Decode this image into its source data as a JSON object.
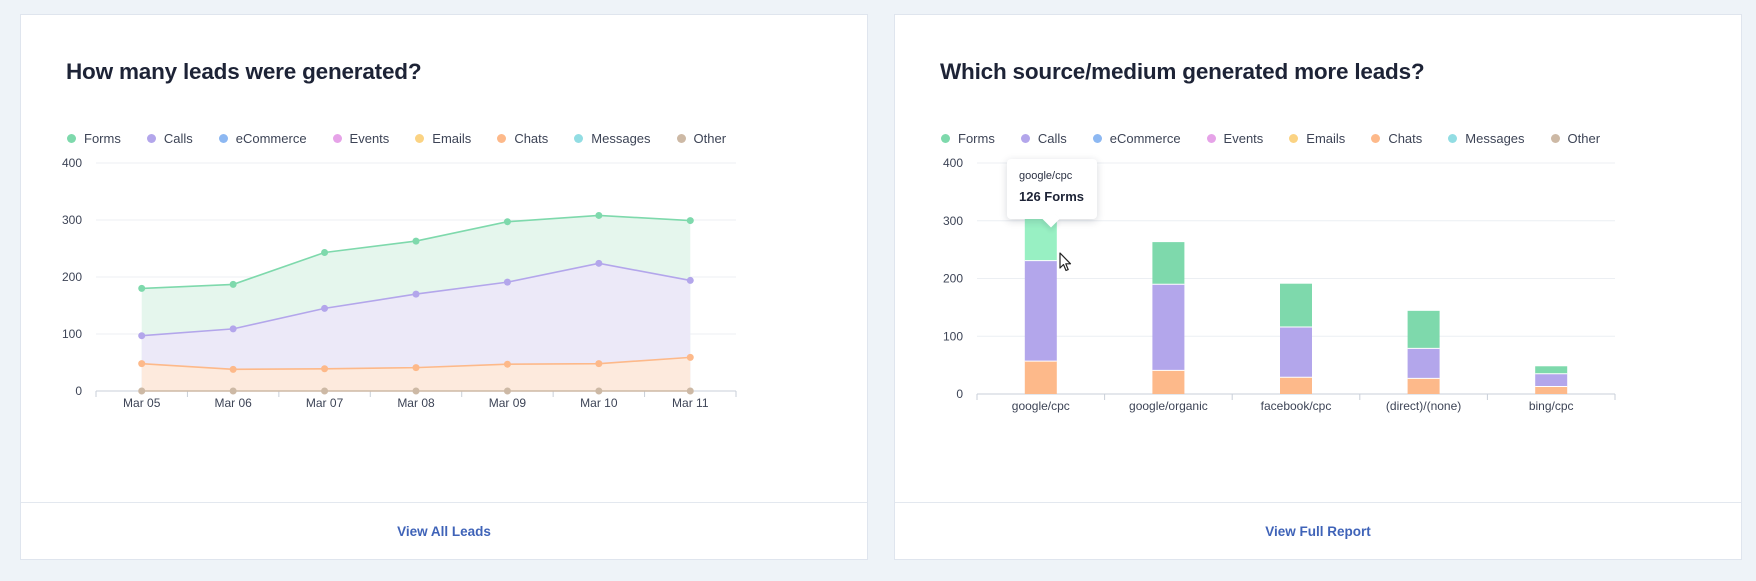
{
  "legend": [
    {
      "label": "Forms",
      "color": "#7ed9ac"
    },
    {
      "label": "Calls",
      "color": "#b3a6eb"
    },
    {
      "label": "eCommerce",
      "color": "#8db8f2"
    },
    {
      "label": "Events",
      "color": "#e6a3e8"
    },
    {
      "label": "Emails",
      "color": "#fbd383"
    },
    {
      "label": "Chats",
      "color": "#fdb98a"
    },
    {
      "label": "Messages",
      "color": "#92dde3"
    },
    {
      "label": "Other",
      "color": "#cdb9a5"
    }
  ],
  "left_card": {
    "title": "How many leads were generated?",
    "footer_link": "View All Leads"
  },
  "right_card": {
    "title": "Which source/medium generated more leads?",
    "footer_link": "View Full Report",
    "tooltip": {
      "source": "google/cpc",
      "value": "126 Forms"
    }
  },
  "chart_data": [
    {
      "type": "area",
      "title": "How many leads were generated?",
      "categories": [
        "Mar 05",
        "Mar 06",
        "Mar 07",
        "Mar 08",
        "Mar 09",
        "Mar 10",
        "Mar 11"
      ],
      "ylim": [
        0,
        400
      ],
      "yticks": [
        0,
        100,
        200,
        300,
        400
      ],
      "series": [
        {
          "name": "Forms",
          "color": "#7ed9ac",
          "fill": "#e5f6ed",
          "values": [
            180,
            187,
            243,
            263,
            297,
            308,
            299
          ]
        },
        {
          "name": "Calls",
          "color": "#b3a6eb",
          "fill": "#ece9f8",
          "values": [
            97,
            109,
            145,
            170,
            191,
            224,
            194
          ]
        },
        {
          "name": "Chats",
          "color": "#fdb98a",
          "fill": "#fdeadd",
          "values": [
            48,
            38,
            39,
            41,
            47,
            48,
            59
          ]
        },
        {
          "name": "Other",
          "color": "#cdb9a5",
          "fill": "none",
          "values": [
            0,
            0,
            0,
            0,
            0,
            0,
            0
          ]
        }
      ],
      "grid": true,
      "legend": "top-left"
    },
    {
      "type": "bar",
      "stacked": true,
      "title": "Which source/medium generated more leads?",
      "categories": [
        "google/cpc",
        "google/organic",
        "facebook/cpc",
        "(direct)/(none)",
        "bing/cpc"
      ],
      "ylim": [
        0,
        400
      ],
      "yticks": [
        0,
        100,
        200,
        300,
        400
      ],
      "series": [
        {
          "name": "Chats",
          "color": "#fdb98a",
          "values": [
            57,
            41,
            29,
            27,
            13
          ]
        },
        {
          "name": "Calls",
          "color": "#b3a6eb",
          "values": [
            174,
            149,
            87,
            52,
            22
          ]
        },
        {
          "name": "Forms",
          "color": "#7ed9ac",
          "values": [
            126,
            73,
            75,
            65,
            13
          ]
        }
      ],
      "highlight": {
        "category": "google/cpc",
        "series": "Forms",
        "color": "#98f0c3"
      },
      "grid": true,
      "legend": "top-left"
    }
  ]
}
